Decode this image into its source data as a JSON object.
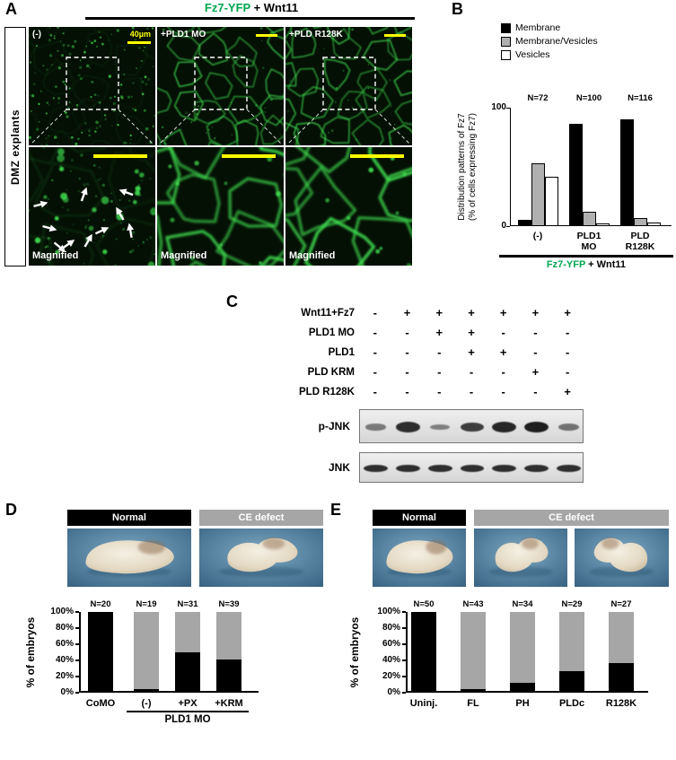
{
  "colors": {
    "green_text": "#00a651",
    "micro_green": "#3fdc50",
    "scalebar_yellow": "#ffff00",
    "ce_defect_gray": "#a6a6a6",
    "membrane_vesicles_gray": "#b0b0b0"
  },
  "figure": {
    "panelA": {
      "label": "A",
      "title": {
        "green": "Fz7-YFP",
        "black": " + Wnt11"
      },
      "side_label": "DMZ explants",
      "col_labels": [
        "(-)",
        "+PLD1 MO",
        "+PLD R128K"
      ],
      "scale_text": "40µm",
      "magnified_label": "Magnified"
    },
    "panelB": {
      "label": "B"
    },
    "panelC": {
      "label": "C",
      "conditions": [
        {
          "name": "Wnt11+Fz7",
          "lanes": [
            "-",
            "+",
            "+",
            "+",
            "+",
            "+",
            "+"
          ]
        },
        {
          "name": "PLD1 MO",
          "lanes": [
            "-",
            "-",
            "+",
            "+",
            "-",
            "-",
            "-"
          ]
        },
        {
          "name": "PLD1",
          "lanes": [
            "-",
            "-",
            "-",
            "+",
            "+",
            "-",
            "-"
          ]
        },
        {
          "name": "PLD KRM",
          "lanes": [
            "-",
            "-",
            "-",
            "-",
            "-",
            "+",
            "-"
          ]
        },
        {
          "name": "PLD R128K",
          "lanes": [
            "-",
            "-",
            "-",
            "-",
            "-",
            "-",
            "+"
          ]
        }
      ],
      "blots": [
        {
          "name": "p-JNK",
          "band_intensity": [
            0.35,
            0.85,
            0.3,
            0.75,
            0.9,
            0.95,
            0.4
          ]
        },
        {
          "name": "JNK",
          "band_intensity": [
            0.85,
            0.85,
            0.85,
            0.85,
            0.85,
            0.85,
            0.85
          ]
        }
      ]
    },
    "panelD": {
      "label": "D",
      "photo_headers": [
        {
          "text": "Normal",
          "bg": "#000000"
        },
        {
          "text": "CE defect",
          "bg": "#a6a6a6"
        }
      ]
    },
    "panelE": {
      "label": "E",
      "photo_headers": [
        {
          "text": "Normal",
          "bg": "#000000"
        },
        {
          "text": "CE defect",
          "bg": "#a6a6a6"
        }
      ]
    }
  },
  "chart_data": [
    {
      "id": "B",
      "type": "bar",
      "categories": [
        "(-)",
        "PLD1 MO",
        "PLD R128K"
      ],
      "series": [
        {
          "name": "Membrane",
          "color": "#000000",
          "values": [
            5,
            86,
            90
          ]
        },
        {
          "name": "Membrane/Vesicles",
          "color": "#b0b0b0",
          "values": [
            53,
            12,
            7
          ]
        },
        {
          "name": "Vesicles",
          "color": "#ffffff",
          "values": [
            42,
            2,
            3
          ]
        }
      ],
      "n_labels": [
        "N=72",
        "N=100",
        "N=116"
      ],
      "ylabel_line1": "Distribution patterns of Fz7",
      "ylabel_line2": "(% of cells expressing Fz7)",
      "ylim": [
        0,
        100
      ],
      "yticks": [
        100,
        0
      ],
      "legend_position": "top-right",
      "xlabel_footer": {
        "green": "Fz7-YFP",
        "black": " + Wnt11"
      }
    },
    {
      "id": "D",
      "type": "stacked-bar",
      "categories": [
        "CoMO",
        "(-)",
        "+PX",
        "+KRM"
      ],
      "series": [
        {
          "name": "Normal",
          "color": "#000000",
          "values": [
            100,
            5,
            50,
            41
          ]
        },
        {
          "name": "CE defect",
          "color": "#a6a6a6",
          "values": [
            0,
            95,
            50,
            59
          ]
        }
      ],
      "n_labels": [
        "N=20",
        "N=19",
        "N=31",
        "N=39"
      ],
      "ylabel": "% of embryos",
      "yticks": [
        "100%",
        "80%",
        "60%",
        "40%",
        "20%",
        "0%"
      ],
      "ylim": [
        0,
        100
      ],
      "group_underline": {
        "label": "PLD1 MO",
        "from_category": 1,
        "to_category": 3
      }
    },
    {
      "id": "E",
      "type": "stacked-bar",
      "categories": [
        "Uninj.",
        "FL",
        "PH",
        "PLDc",
        "R128K"
      ],
      "series": [
        {
          "name": "Normal",
          "color": "#000000",
          "values": [
            100,
            5,
            12,
            27,
            37
          ]
        },
        {
          "name": "CE defect",
          "color": "#a6a6a6",
          "values": [
            0,
            95,
            88,
            73,
            63
          ]
        }
      ],
      "n_labels": [
        "N=50",
        "N=43",
        "N=34",
        "N=29",
        "N=27"
      ],
      "ylabel": "% of embryos",
      "yticks": [
        "100%",
        "80%",
        "60%",
        "40%",
        "20%",
        "0%"
      ],
      "ylim": [
        0,
        100
      ]
    }
  ]
}
